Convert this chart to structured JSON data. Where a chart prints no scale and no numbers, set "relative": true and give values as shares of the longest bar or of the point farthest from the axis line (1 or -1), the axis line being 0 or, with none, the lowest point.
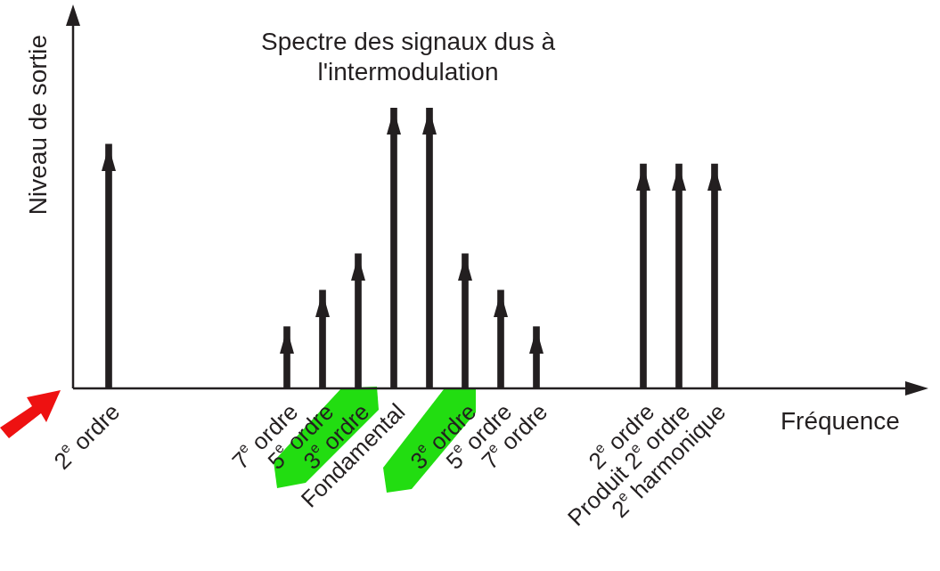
{
  "chart_data": {
    "type": "bar",
    "title": "Spectre des signaux dus à\nl'intermodulation",
    "xlabel": "Fréquence",
    "ylabel": "Niveau de sortie",
    "relative": true,
    "color": "#231f20",
    "categories": [
      "2$^{e}$ ordre",
      null,
      null,
      null,
      null,
      "7$^{e}$ ordre",
      "5$^{e}$ ordre",
      "3$^{e}$ ordre",
      "Fondamental",
      null,
      "3$^{e}$ ordre",
      "5$^{e}$ ordre",
      "7$^{e}$ ordre",
      null,
      null,
      "2$^{e}$ ordre",
      "Produit 2$^{e}$ ordre",
      "2$^{e}$ harmonique",
      null,
      null,
      null,
      null,
      null
    ],
    "values": [
      0.87,
      null,
      null,
      null,
      null,
      0.22,
      0.35,
      0.48,
      1,
      1,
      0.48,
      0.35,
      0.22,
      null,
      null,
      0.8,
      0.8,
      0.8,
      null,
      null,
      null,
      null,
      null
    ]
  }
}
